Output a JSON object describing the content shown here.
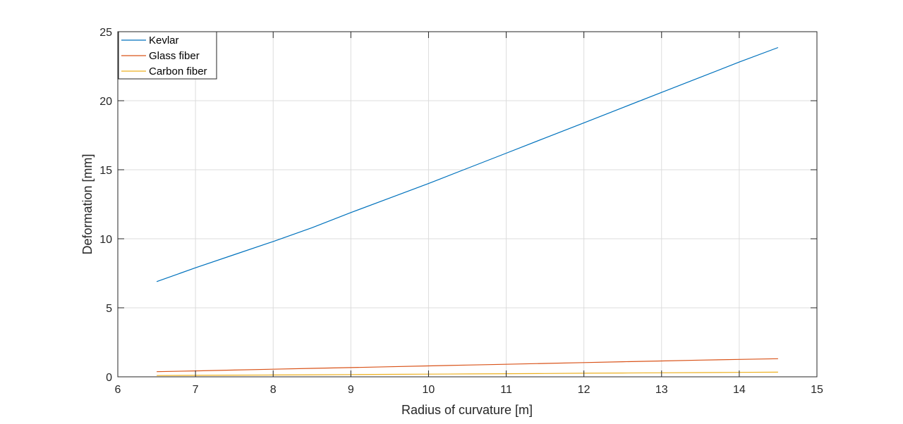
{
  "chart_data": {
    "type": "line",
    "xlabel": "Radius of curvature [m]",
    "ylabel": "Deformation [mm]",
    "xlim": [
      6,
      15
    ],
    "ylim": [
      0,
      25
    ],
    "xticks": [
      6,
      7,
      8,
      9,
      10,
      11,
      12,
      13,
      14,
      15
    ],
    "yticks": [
      0,
      5,
      10,
      15,
      20,
      25
    ],
    "grid": true,
    "legend_position": "top-left",
    "x": [
      6.5,
      7,
      7.5,
      8,
      8.5,
      9,
      9.5,
      10,
      10.5,
      11,
      11.5,
      12,
      12.5,
      13,
      13.5,
      14,
      14.5
    ],
    "series": [
      {
        "name": "Kevlar",
        "color": "#0072BD",
        "values": [
          6.9,
          7.9,
          8.85,
          9.8,
          10.8,
          11.9,
          12.95,
          14.0,
          15.1,
          16.2,
          17.3,
          18.4,
          19.5,
          20.6,
          21.7,
          22.8,
          23.85
        ]
      },
      {
        "name": "Glass fiber",
        "color": "#D95319",
        "values": [
          0.37,
          0.43,
          0.49,
          0.55,
          0.61,
          0.67,
          0.73,
          0.79,
          0.85,
          0.91,
          0.97,
          1.03,
          1.09,
          1.15,
          1.21,
          1.26,
          1.31
        ]
      },
      {
        "name": "Carbon fiber",
        "color": "#EDB120",
        "values": [
          0.09,
          0.105,
          0.12,
          0.135,
          0.15,
          0.165,
          0.18,
          0.195,
          0.21,
          0.225,
          0.24,
          0.26,
          0.275,
          0.29,
          0.305,
          0.32,
          0.335
        ]
      }
    ]
  }
}
